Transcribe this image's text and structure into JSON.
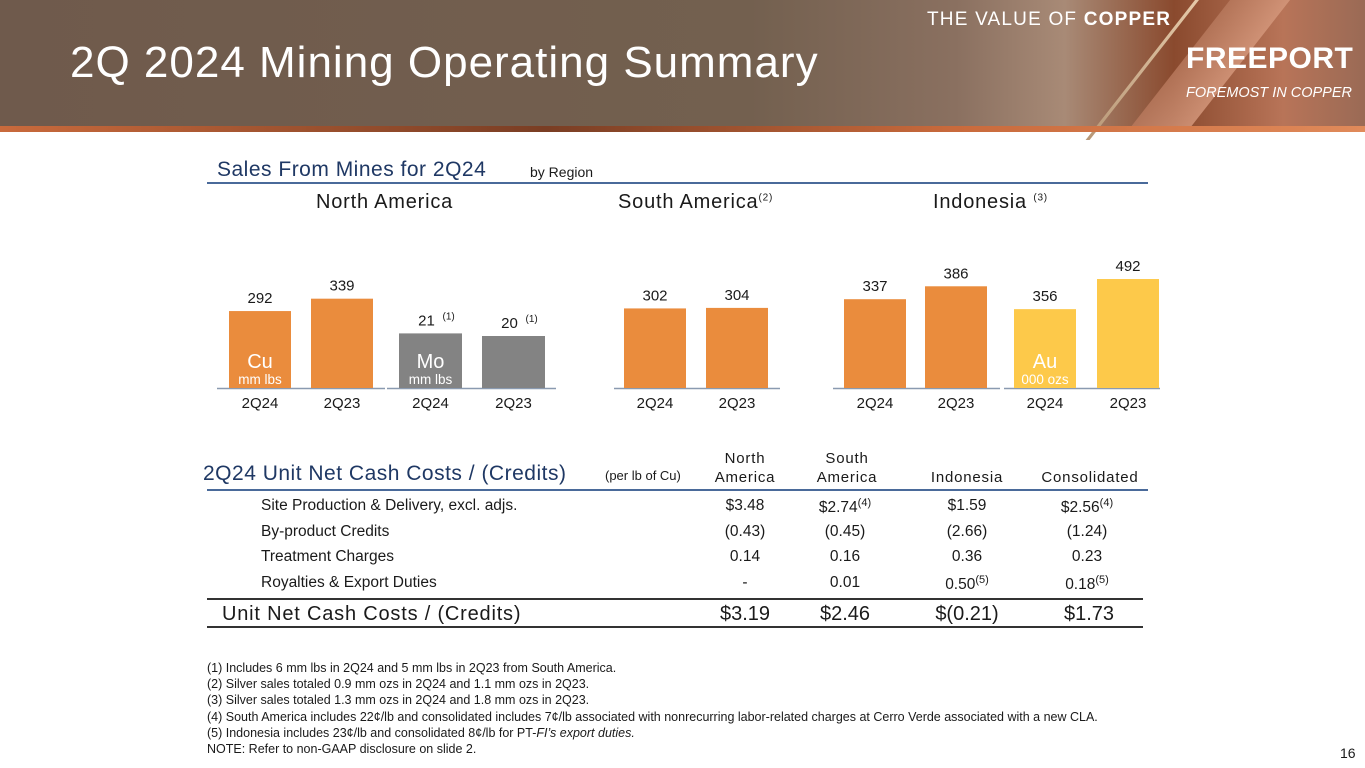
{
  "header": {
    "title": "2Q 2024 Mining Operating Summary",
    "tagline_light": "THE VALUE OF ",
    "tagline_bold": "COPPER",
    "logo": "FREEPORT",
    "logo_sub": "FOREMOST IN COPPER"
  },
  "sales": {
    "title": "Sales From Mines for 2Q24",
    "subtitle": "by Region",
    "regions": [
      {
        "name": "North America",
        "note": ""
      },
      {
        "name": "South America",
        "note": "(2)"
      },
      {
        "name": "Indonesia",
        "note": "(3)"
      }
    ]
  },
  "chart_data": {
    "type": "bar",
    "title": "Sales From Mines for 2Q24 by Region",
    "groups": [
      {
        "region": "North America",
        "metal": "Cu",
        "unit": "mm lbs",
        "categories": [
          "2Q24",
          "2Q23"
        ],
        "values": [
          292,
          339
        ],
        "color": "#ea8c3d",
        "notes": [
          "",
          ""
        ]
      },
      {
        "region": "North America",
        "metal": "Mo",
        "unit": "mm lbs",
        "categories": [
          "2Q24",
          "2Q23"
        ],
        "values": [
          21,
          20
        ],
        "color": "#838383",
        "notes": [
          "(1)",
          "(1)"
        ]
      },
      {
        "region": "South America",
        "metal": "Cu",
        "unit": "mm lbs",
        "categories": [
          "2Q24",
          "2Q23"
        ],
        "values": [
          302,
          304
        ],
        "color": "#ea8c3d",
        "notes": [
          "",
          ""
        ]
      },
      {
        "region": "Indonesia",
        "metal": "Cu",
        "unit": "mm lbs",
        "categories": [
          "2Q24",
          "2Q23"
        ],
        "values": [
          337,
          386
        ],
        "color": "#ea8c3d",
        "notes": [
          "",
          ""
        ]
      },
      {
        "region": "Indonesia",
        "metal": "Au",
        "unit": "000 ozs",
        "categories": [
          "2Q24",
          "2Q23"
        ],
        "values": [
          356,
          492
        ],
        "color": "#fdc94a",
        "notes": [
          "",
          ""
        ]
      }
    ]
  },
  "costs": {
    "title": "2Q24 Unit Net Cash Costs / (Credits)",
    "subtitle": "(per lb of Cu)",
    "columns": [
      {
        "line1": "North",
        "line2": "America"
      },
      {
        "line1": "South",
        "line2": "America"
      },
      {
        "line1": "",
        "line2": "Indonesia"
      },
      {
        "line1": "",
        "line2": "Consolidated"
      }
    ],
    "rows": [
      {
        "label": "Site Production & Delivery, excl. adjs.",
        "values": [
          "$3.48",
          "$2.74",
          "$1.59",
          "$2.56"
        ],
        "notes": [
          "",
          "(4)",
          "",
          "(4)"
        ]
      },
      {
        "label": "By-product Credits",
        "values": [
          "(0.43)",
          "(0.45)",
          "(2.66)",
          "(1.24)"
        ],
        "notes": [
          "",
          "",
          "",
          ""
        ]
      },
      {
        "label": "Treatment Charges",
        "values": [
          "0.14",
          "0.16",
          "0.36",
          "0.23"
        ],
        "notes": [
          "",
          "",
          "",
          ""
        ]
      },
      {
        "label": "Royalties & Export Duties",
        "values": [
          "-",
          "0.01",
          "0.50",
          "0.18"
        ],
        "notes": [
          "",
          "",
          "(5)",
          "(5)"
        ]
      }
    ],
    "total": {
      "label": "Unit Net Cash Costs / (Credits)",
      "values": [
        "$3.19",
        "$2.46",
        "$(0.21)",
        "$1.73"
      ]
    }
  },
  "footnotes": [
    "(1) Includes 6 mm lbs in 2Q24 and 5 mm lbs in 2Q23 from South America.",
    "(2) Silver sales totaled 0.9 mm ozs in 2Q24 and 1.1 mm ozs in 2Q23.",
    "(3) Silver sales totaled 1.3 mm ozs in 2Q24 and 1.8 mm ozs in 2Q23.",
    "(4) South America includes 22¢/lb and consolidated includes 7¢/lb associated with nonrecurring labor-related charges at Cerro Verde associated with a new CLA.",
    "(5) Indonesia includes 23¢/lb and consolidated 8¢/lb for PT-",
    "NOTE: Refer to non-GAAP disclosure on slide 2."
  ],
  "footnote5_italic": "FI’s export duties.",
  "page_number": "16"
}
